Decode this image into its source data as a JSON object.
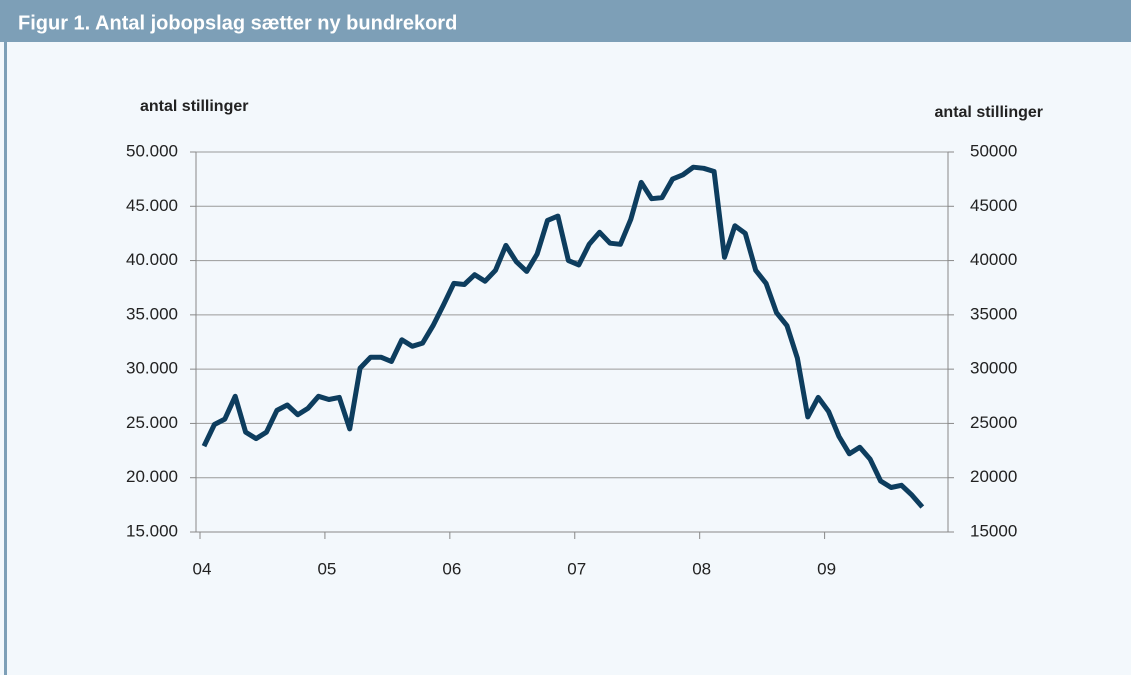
{
  "chart_data": {
    "type": "line",
    "title": "Figur 1. Antal jobopslag sætter ny bundrekord",
    "ylabel": "antal stillinger",
    "y2label": "antal stillinger",
    "categories": [
      "04",
      null,
      null,
      null,
      null,
      null,
      null,
      null,
      null,
      null,
      null,
      null,
      "05",
      null,
      null,
      null,
      null,
      null,
      null,
      null,
      null,
      null,
      null,
      null,
      "06",
      null,
      null,
      null,
      null,
      null,
      null,
      null,
      null,
      null,
      null,
      null,
      "07",
      null,
      null,
      null,
      null,
      null,
      null,
      null,
      null,
      null,
      null,
      null,
      "08",
      null,
      null,
      null,
      null,
      null,
      null,
      null,
      null,
      null,
      null,
      null,
      "09",
      null,
      null,
      null,
      null,
      null,
      null,
      null,
      null,
      null
    ],
    "series": [
      {
        "color": "#0d3d5e",
        "values": [
          22900,
          24900,
          25400,
          27500,
          24200,
          23600,
          24200,
          26200,
          26700,
          25800,
          26400,
          27500,
          27200,
          27400,
          24500,
          30100,
          31100,
          31100,
          30700,
          32700,
          32100,
          32400,
          34000,
          35900,
          37900,
          37800,
          38700,
          38100,
          39100,
          41400,
          39900,
          39000,
          40600,
          43700,
          44100,
          40000,
          39600,
          41500,
          42600,
          41600,
          41500,
          43800,
          47200,
          45700,
          45800,
          47500,
          47900,
          48600,
          48500,
          48200,
          40300,
          43200,
          42500,
          39100,
          37900,
          35200,
          34000,
          31000,
          25600,
          27400,
          26100,
          23800,
          22200,
          22800,
          21700,
          19700,
          19100,
          19300,
          18400,
          17300
        ]
      }
    ],
    "ylim": [
      15000,
      50000
    ],
    "yticks": [
      {
        "value": 15000,
        "label": "15.000"
      },
      {
        "value": 20000,
        "label": "20.000"
      },
      {
        "value": 25000,
        "label": "25.000"
      },
      {
        "value": 30000,
        "label": "30.000"
      },
      {
        "value": 35000,
        "label": "35.000"
      },
      {
        "value": 40000,
        "label": "40.000"
      },
      {
        "value": 45000,
        "label": "45.000"
      },
      {
        "value": 50000,
        "label": "50.000"
      }
    ],
    "y2lim": [
      15000,
      50000
    ],
    "y2ticks": [
      15000,
      20000,
      25000,
      30000,
      35000,
      40000,
      45000,
      50000
    ],
    "grid": true
  }
}
